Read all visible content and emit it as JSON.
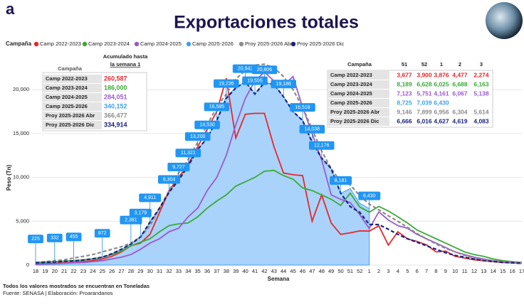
{
  "logo": "a",
  "summary_table": {
    "headers": [
      "Campaña",
      "Acumulado hasta",
      "la semana 1"
    ],
    "rows": [
      [
        "Camp 2022-2023",
        "260,587"
      ],
      [
        "Camp 2023-2024",
        "186,000"
      ],
      [
        "Camp 2024-2025",
        "284,051"
      ],
      [
        "Camp 2025-2026",
        "340,152"
      ],
      [
        "Proy 2025-2026 Abr",
        "366,477"
      ],
      [
        "Proy 2025-2026 Dic",
        "334,914"
      ]
    ]
  },
  "weekly_table": {
    "headers": [
      "Campaña",
      "51",
      "52",
      "1",
      "2",
      "3"
    ],
    "rows": [
      [
        "Camp 2022-2023",
        "3,677",
        "3,900",
        "3,876",
        "4,477",
        "2,274"
      ],
      [
        "Camp 2023-2024",
        "8,189",
        "6,628",
        "6,025",
        "6,688",
        "6,163"
      ],
      [
        "Camp 2024-2025",
        "7,123",
        "5,751",
        "4,161",
        "6,067",
        "5,138"
      ],
      [
        "Camp 2025-2026",
        "8,725",
        "7,039",
        "6,430"
      ],
      [
        "Proy 2025-2026 Abr",
        "9,146",
        "7,899",
        "6,956",
        "6,304",
        "5,614"
      ],
      [
        "Proy 2025-2026 Dic",
        "6,666",
        "6,016",
        "4,627",
        "4,619",
        "4,083"
      ]
    ]
  },
  "footnote": "Todos los valores mostrados se encuentran en Toneladas",
  "source": "Fuente: SENASA | Elaboración: Proarandanos",
  "chart_data": {
    "type": "line",
    "title": "Exportaciones totales",
    "legend_title": "Campaña",
    "x_label": "Semana",
    "y_label": "Peso (Tn)",
    "categories": [
      "18",
      "19",
      "20",
      "21",
      "22",
      "23",
      "24",
      "25",
      "26",
      "27",
      "28",
      "29",
      "30",
      "31",
      "32",
      "33",
      "34",
      "35",
      "36",
      "37",
      "38",
      "39",
      "40",
      "41",
      "42",
      "43",
      "44",
      "45",
      "46",
      "47",
      "48",
      "49",
      "50",
      "51",
      "52",
      "1",
      "2",
      "3",
      "4",
      "5",
      "6",
      "7",
      "8",
      "9",
      "10",
      "11",
      "12",
      "13",
      "14",
      "15",
      "16",
      "17"
    ],
    "ylim": [
      0,
      23500
    ],
    "yticks": [
      0,
      {
        "value": 5000,
        "label": "5,000"
      },
      {
        "value": 10000,
        "label": "10,000"
      },
      {
        "value": 15000,
        "label": "15,000"
      },
      {
        "value": 20000,
        "label": "20,000"
      }
    ],
    "grid": true,
    "series": [
      {
        "name": "Camp 2022-2023",
        "color": "#e8262b",
        "style": "solid",
        "values": [
          100,
          150,
          200,
          250,
          300,
          400,
          500,
          700,
          1000,
          1500,
          2200,
          2500,
          3500,
          6000,
          8500,
          10000,
          11500,
          13500,
          15500,
          17500,
          21300,
          14500,
          17200,
          17300,
          17300,
          13500,
          10500,
          10300,
          10200,
          5000,
          8000,
          4800,
          3500,
          3677,
          3900,
          3876,
          4477,
          2274,
          3800,
          3000,
          2700,
          2300,
          1500,
          1600,
          1000,
          800,
          600,
          500,
          400,
          300,
          250,
          200
        ]
      },
      {
        "name": "Camp 2023-2024",
        "color": "#3aaa35",
        "style": "solid",
        "values": [
          300,
          350,
          400,
          450,
          500,
          600,
          700,
          900,
          1200,
          1600,
          2200,
          2600,
          3000,
          3800,
          4500,
          4700,
          4800,
          5500,
          6500,
          7300,
          8000,
          9000,
          9500,
          10000,
          10700,
          10800,
          10200,
          9800,
          8800,
          8500,
          8000,
          7500,
          6800,
          8189,
          6628,
          6025,
          6688,
          6163,
          5500,
          4800,
          4000,
          3500,
          3000,
          2500,
          2000,
          1500,
          1200,
          1000,
          700,
          500,
          400,
          300
        ]
      },
      {
        "name": "Camp 2024-2025",
        "color": "#9b59d0",
        "style": "solid",
        "values": [
          100,
          120,
          150,
          200,
          250,
          300,
          400,
          500,
          700,
          900,
          1200,
          1800,
          2500,
          3000,
          3800,
          4200,
          5500,
          6500,
          8500,
          10000,
          12500,
          16000,
          19000,
          21000,
          22000,
          21000,
          20500,
          21500,
          18000,
          15000,
          12000,
          8000,
          7500,
          7123,
          5751,
          4161,
          6067,
          5138,
          4500,
          4200,
          3500,
          3000,
          2500,
          2000,
          1500,
          1200,
          900,
          700,
          500,
          400,
          300,
          200
        ]
      },
      {
        "name": "Camp 2025-2026",
        "color": "#3ea0f0",
        "style": "area",
        "values": [
          225,
          280,
          332,
          400,
          455,
          550,
          700,
          872,
          1300,
          1800,
          2381,
          3179,
          4911,
          6500,
          8304,
          9727,
          11321,
          13200,
          14530,
          16585,
          19236,
          20200,
          20942,
          19555,
          20806,
          20600,
          19186,
          17500,
          16518,
          14038,
          12176,
          11000,
          8181,
          8725,
          7039,
          6430,
          null,
          null,
          null,
          null,
          null,
          null,
          null,
          null,
          null,
          null,
          null,
          null,
          null,
          null,
          null,
          null
        ],
        "value_labels": [
          "225",
          null,
          "332",
          null,
          "455",
          null,
          null,
          "872",
          null,
          null,
          "2,381",
          "3,179",
          "4,911",
          null,
          "8,304",
          "9,727",
          "11,321",
          "13,200",
          "14,530",
          "16,585",
          "19,236",
          null,
          "20,942",
          "19,555",
          "20,806",
          null,
          "19,186",
          null,
          "16,518",
          "14,038",
          "12,176",
          null,
          "8,181",
          null,
          null,
          "6,430",
          null,
          null,
          null,
          null,
          null,
          null,
          null,
          null,
          null,
          null,
          null,
          null,
          null,
          null,
          null,
          null
        ]
      },
      {
        "name": "Proy 2025-2026 Abr",
        "color": "#8c8c8c",
        "style": "dashed",
        "values": [
          300,
          400,
          500,
          600,
          800,
          1000,
          1200,
          1500,
          1800,
          2100,
          2500,
          3200,
          4500,
          6500,
          8500,
          10500,
          12000,
          14000,
          16000,
          18000,
          19500,
          21200,
          22200,
          22800,
          22900,
          22500,
          21500,
          20000,
          18000,
          15500,
          13000,
          11000,
          9500,
          9146,
          7899,
          6956,
          6304,
          5614,
          5000,
          4300,
          3600,
          3000,
          2400,
          1900,
          1500,
          1100,
          800,
          600,
          500,
          400,
          350,
          300
        ]
      },
      {
        "name": "Proy 2025-2026 Dic",
        "color": "#1a237e",
        "style": "dashed",
        "values": [
          250,
          300,
          350,
          420,
          480,
          580,
          720,
          900,
          1300,
          1800,
          2400,
          3200,
          4900,
          6500,
          8300,
          9700,
          11300,
          13200,
          14500,
          16500,
          19000,
          20200,
          20900,
          19500,
          20800,
          20600,
          19200,
          17500,
          16500,
          14000,
          12200,
          11000,
          8200,
          6666,
          6016,
          4627,
          4619,
          4083,
          3500,
          3000,
          2600,
          2200,
          1800,
          1400,
          1100,
          900,
          700,
          500,
          400,
          300,
          250,
          200
        ]
      }
    ]
  }
}
